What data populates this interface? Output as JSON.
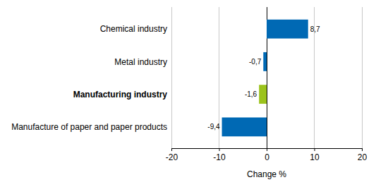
{
  "chart_data": {
    "type": "bar",
    "orientation": "horizontal",
    "categories": [
      "Chemical industry",
      "Metal industry",
      "Manufacturing industry",
      "Manufacture of paper and paper products"
    ],
    "values": [
      8.7,
      -0.7,
      -1.6,
      -9.4
    ],
    "value_labels": [
      "8,7",
      "-0,7",
      "-1,6",
      "-9,4"
    ],
    "colors": [
      "#0069b4",
      "#0069b4",
      "#9bc31c",
      "#0069b4"
    ],
    "xlabel": "Change %",
    "xlim": [
      -20,
      20
    ],
    "xticks": [
      -20,
      -10,
      0,
      10,
      20
    ],
    "grid": true,
    "data_labels": true
  }
}
